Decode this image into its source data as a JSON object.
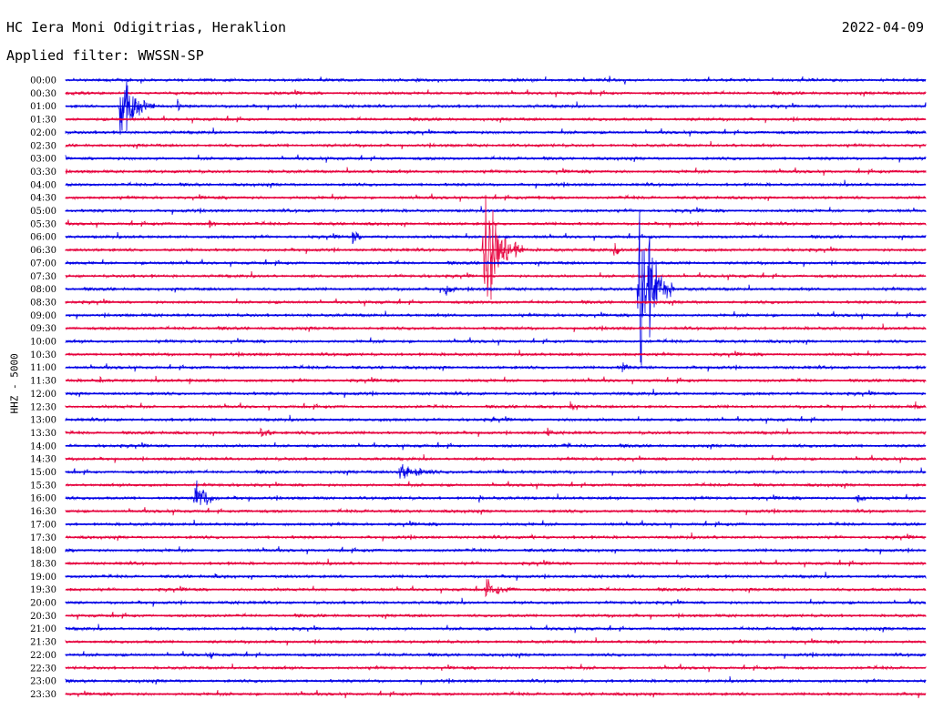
{
  "header": {
    "title": "HC Iera Moni Odigitrias, Heraklion",
    "date": "2022-04-09",
    "filter": "Applied filter: WWSSN-SP"
  },
  "chart_data": {
    "type": "line",
    "subtype": "helicorder",
    "channel_label": "HHZ - 5000",
    "row_labels": [
      "00:00",
      "00:30",
      "01:00",
      "01:30",
      "02:00",
      "02:30",
      "03:00",
      "03:30",
      "04:00",
      "04:30",
      "05:00",
      "05:30",
      "06:00",
      "06:30",
      "07:00",
      "07:30",
      "08:00",
      "08:30",
      "09:00",
      "09:30",
      "10:00",
      "10:30",
      "11:00",
      "11:30",
      "12:00",
      "12:30",
      "13:00",
      "13:30",
      "14:00",
      "14:30",
      "15:00",
      "15:30",
      "16:00",
      "16:30",
      "17:00",
      "17:30",
      "18:00",
      "18:30",
      "19:00",
      "19:30",
      "20:00",
      "20:30",
      "21:00",
      "21:30",
      "22:00",
      "22:30",
      "23:00",
      "23:30"
    ],
    "colors": {
      "even_rows": "#0000e6",
      "odd_rows": "#e6003c"
    },
    "x_unit": "minutes within each 30-minute row",
    "xlim": [
      0,
      30
    ],
    "events": [
      {
        "row": "01:00",
        "minute": 1.9,
        "amplitude": 48,
        "duration": 1.3
      },
      {
        "row": "01:00",
        "minute": 3.9,
        "amplitude": 6,
        "duration": 0.5
      },
      {
        "row": "04:30",
        "minute": 16.5,
        "amplitude": 7,
        "duration": 0.4
      },
      {
        "row": "05:30",
        "minute": 5.0,
        "amplitude": 7,
        "duration": 0.6
      },
      {
        "row": "06:00",
        "minute": 10.0,
        "amplitude": 8,
        "duration": 0.7
      },
      {
        "row": "06:30",
        "minute": 14.6,
        "amplitude": 85,
        "duration": 1.4
      },
      {
        "row": "06:30",
        "minute": 19.1,
        "amplitude": 10,
        "duration": 0.6
      },
      {
        "row": "08:00",
        "minute": 13.2,
        "amplitude": 10,
        "duration": 0.8
      },
      {
        "row": "08:00",
        "minute": 20.0,
        "amplitude": 120,
        "duration": 1.2
      },
      {
        "row": "11:00",
        "minute": 19.4,
        "amplitude": 9,
        "duration": 0.6
      },
      {
        "row": "11:30",
        "minute": 1.2,
        "amplitude": 7,
        "duration": 0.3
      },
      {
        "row": "11:30",
        "minute": 4.3,
        "amplitude": 7,
        "duration": 0.3
      },
      {
        "row": "12:30",
        "minute": 17.6,
        "amplitude": 8,
        "duration": 0.5
      },
      {
        "row": "12:30",
        "minute": 29.6,
        "amplitude": 6,
        "duration": 0.5
      },
      {
        "row": "13:00",
        "minute": 14.9,
        "amplitude": 8,
        "duration": 0.2
      },
      {
        "row": "13:30",
        "minute": 6.8,
        "amplitude": 7,
        "duration": 1.2
      },
      {
        "row": "13:30",
        "minute": 16.8,
        "amplitude": 6,
        "duration": 0.5
      },
      {
        "row": "14:00",
        "minute": 17.4,
        "amplitude": 6,
        "duration": 0.5
      },
      {
        "row": "15:00",
        "minute": 11.6,
        "amplitude": 10,
        "duration": 2.5
      },
      {
        "row": "15:00",
        "minute": 15.1,
        "amplitude": 4,
        "duration": 1.2
      },
      {
        "row": "16:00",
        "minute": 4.5,
        "amplitude": 22,
        "duration": 1.1
      },
      {
        "row": "16:00",
        "minute": 14.4,
        "amplitude": 5,
        "duration": 0.3
      },
      {
        "row": "16:00",
        "minute": 27.6,
        "amplitude": 9,
        "duration": 0.6
      },
      {
        "row": "17:30",
        "minute": 16.2,
        "amplitude": 5,
        "duration": 0.4
      },
      {
        "row": "19:00",
        "minute": 5.2,
        "amplitude": 4,
        "duration": 0.3
      },
      {
        "row": "19:30",
        "minute": 14.6,
        "amplitude": 10,
        "duration": 2.0
      },
      {
        "row": "22:00",
        "minute": 5.0,
        "amplitude": 6,
        "duration": 0.5
      }
    ]
  }
}
